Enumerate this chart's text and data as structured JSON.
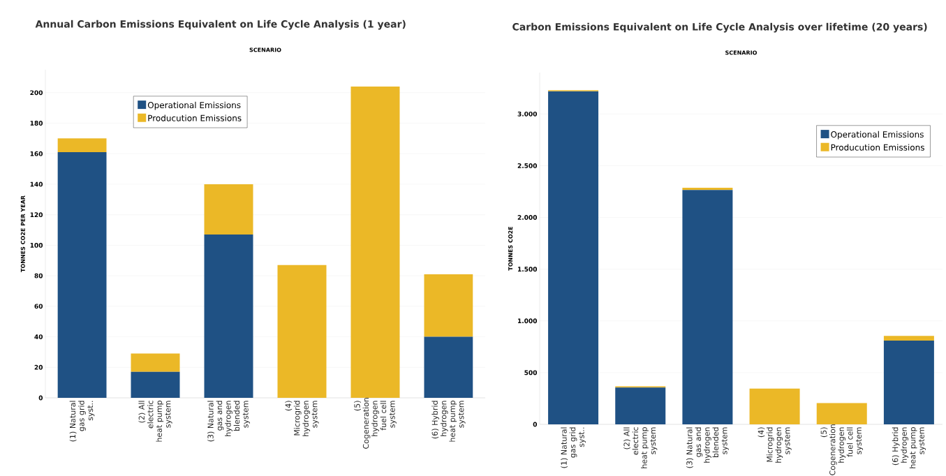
{
  "chart_data": [
    {
      "type": "bar",
      "stacked": true,
      "title": "Annual Carbon Emissions Equivalent on Life Cycle Analysis (1 year)",
      "xlabel": "SCENARIO",
      "ylabel": "TONNES CO2E PER YEAR",
      "categories": [
        "(1) Natural gas grid syst..",
        "(2) All electric heat pump system",
        "(3) Natural gas and hydrogen blended system",
        "(4) Microgrid hydrogen system",
        "(5) Cogeneration hydrogen fuel cell system",
        "(6) Hybrid hydrogen heat pump system"
      ],
      "series": [
        {
          "name": "Operational Emissions",
          "color": "#1f5184",
          "values": [
            161,
            17,
            107,
            0,
            0,
            40
          ]
        },
        {
          "name": "Producution Emissions",
          "color": "#ebb827",
          "values": [
            9,
            12,
            33,
            87,
            204,
            41
          ]
        }
      ],
      "ylim": [
        0,
        215
      ],
      "yticks": [
        0,
        20,
        40,
        60,
        80,
        100,
        120,
        140,
        160,
        180,
        200
      ],
      "grid": "y",
      "legend": "top left"
    },
    {
      "type": "bar",
      "stacked": true,
      "title": "Carbon Emissions Equivalent on Life Cycle Analysis over lifetime (20 years)",
      "xlabel": "SCENARIO",
      "ylabel": "TONNES CO2E",
      "categories": [
        "(1) Natural gas grid syst..",
        "(2) All electric heat pump system",
        "(3) Natural gas and hydrogen blended system",
        "(4) Microgrid hydrogen system",
        "(5) Cogeneration hydrogen fuel cell system",
        "(6) Hybrid hydrogen heat pump system"
      ],
      "series": [
        {
          "name": "Operational Emissions",
          "color": "#1f5184",
          "values": [
            3220,
            355,
            2265,
            0,
            0,
            810
          ]
        },
        {
          "name": "Producution Emissions",
          "color": "#ebb827",
          "values": [
            10,
            12,
            22,
            345,
            205,
            45
          ]
        }
      ],
      "ylim": [
        0,
        3400
      ],
      "yticks": [
        0,
        {
          "value": 500,
          "label": "500"
        },
        {
          "value": 1000,
          "label": "1.000"
        },
        {
          "value": 1500,
          "label": "1.500"
        },
        {
          "value": 2000,
          "label": "2.000"
        },
        {
          "value": 2500,
          "label": "2.500"
        },
        {
          "value": 3000,
          "label": "3.000"
        }
      ],
      "grid": "y",
      "legend": "top right"
    }
  ]
}
